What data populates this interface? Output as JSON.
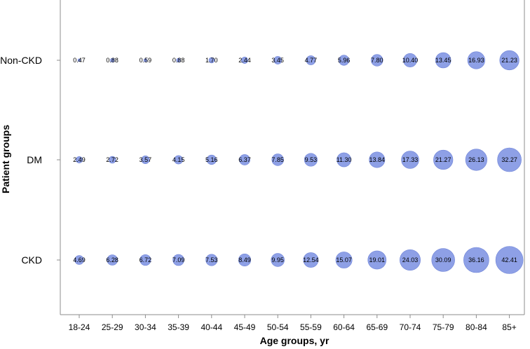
{
  "chart_data": {
    "type": "bubble",
    "xlabel": "Age groups, yr",
    "ylabel": "Patient groups",
    "categories": [
      "18-24",
      "25-29",
      "30-34",
      "35-39",
      "40-44",
      "45-49",
      "50-54",
      "55-59",
      "60-64",
      "65-69",
      "70-74",
      "75-79",
      "80-84",
      "85+"
    ],
    "groups": [
      "Non-CKD",
      "DM",
      "CKD"
    ],
    "series": [
      {
        "name": "Non-CKD",
        "values": [
          0.47,
          0.88,
          0.59,
          0.88,
          1.7,
          2.44,
          3.45,
          4.77,
          5.96,
          7.8,
          10.4,
          13.45,
          16.93,
          21.23
        ],
        "labels": [
          "0.47",
          "0.88",
          "0.59",
          "0.88",
          "1.70",
          "2.44",
          "3.45",
          "4.77",
          "5.96",
          "7.80",
          "10.40",
          "13.45",
          "16.93",
          "21.23"
        ]
      },
      {
        "name": "DM",
        "values": [
          2.49,
          2.72,
          3.57,
          4.15,
          5.16,
          6.37,
          7.85,
          9.53,
          11.3,
          13.84,
          17.33,
          21.27,
          26.13,
          32.27
        ],
        "labels": [
          "2.49",
          "2.72",
          "3.57",
          "4.15",
          "5.16",
          "6.37",
          "7.85",
          "9.53",
          "11.30",
          "13.84",
          "17.33",
          "21.27",
          "26.13",
          "32.27"
        ]
      },
      {
        "name": "CKD",
        "values": [
          4.69,
          6.28,
          6.72,
          7.09,
          7.53,
          8.49,
          9.95,
          12.54,
          15.07,
          19.01,
          24.03,
          30.09,
          36.16,
          42.41
        ],
        "labels": [
          "4.69",
          "6.28",
          "6.72",
          "7.09",
          "7.53",
          "8.49",
          "9.95",
          "12.54",
          "15.07",
          "19.01",
          "24.03",
          "30.09",
          "36.16",
          "42.41"
        ]
      }
    ],
    "bubble_color": "#8ea0e6",
    "bubble_stroke": "#6f84d8",
    "axis_color": "#8c8c8c",
    "grid": false,
    "legend": "none"
  }
}
